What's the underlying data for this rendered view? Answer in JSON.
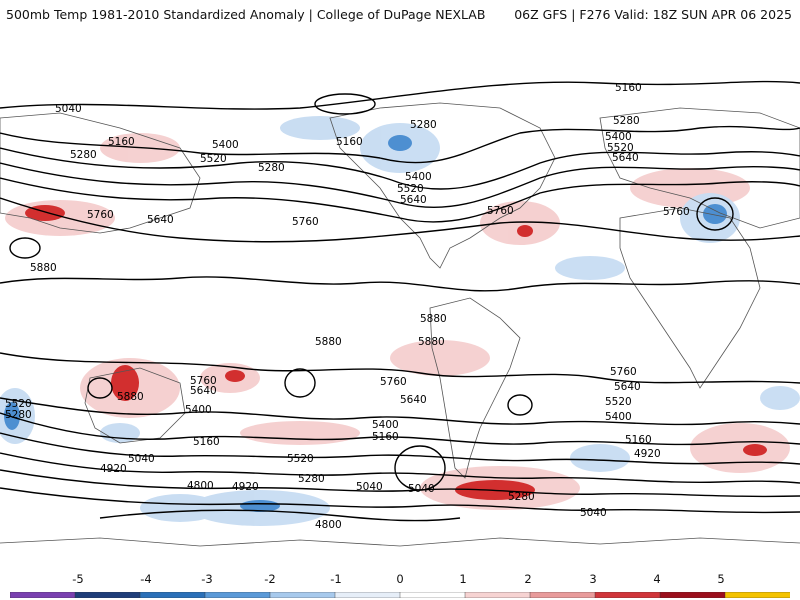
{
  "header": {
    "title": "500mb Temp 1981-2010 Standardized Anomaly | College of DuPage NEXLAB",
    "run_info": "06Z GFS | F276 Valid: 18Z SUN APR 06 2025"
  },
  "map": {
    "contour_labels": [
      "5160",
      "5040",
      "5280",
      "5160",
      "5400",
      "5520",
      "5280",
      "5160",
      "5280",
      "5400",
      "5520",
      "5640",
      "5760",
      "5760",
      "5640",
      "5760",
      "5520",
      "5640",
      "5400",
      "5760",
      "5880",
      "5880",
      "5880",
      "5880",
      "5760",
      "5640",
      "5400",
      "5880",
      "5160",
      "5520",
      "5280",
      "5040",
      "4920",
      "4800",
      "4920",
      "4800",
      "5760",
      "5640",
      "5400",
      "5160",
      "5520",
      "5280",
      "5040",
      "5040",
      "5280",
      "5040",
      "5760",
      "5640",
      "5520",
      "5400",
      "5160",
      "4920",
      "5280"
    ],
    "colors": {
      "cold_strong": "#3a7fc8",
      "cold_moderate": "#8ab6e6",
      "cold_weak": "#cfe0f3",
      "warm_weak": "#f6d3d2",
      "warm_moderate": "#ea9b9b",
      "warm_strong": "#d22f2f",
      "land_outline": "#444444",
      "contour": "#000000"
    }
  },
  "colorbar": {
    "ticks": [
      "-5",
      "-4",
      "-3",
      "-2",
      "-1",
      "0",
      "1",
      "2",
      "3",
      "4",
      "5"
    ],
    "colors": [
      "#7a40b0",
      "#1f3e7a",
      "#2b70b8",
      "#5b9ad8",
      "#a7c9ec",
      "#e6eef8",
      "#ffffff",
      "#f6d3d2",
      "#e89b9b",
      "#d0353a",
      "#9b0f1c",
      "#f4c300"
    ]
  }
}
